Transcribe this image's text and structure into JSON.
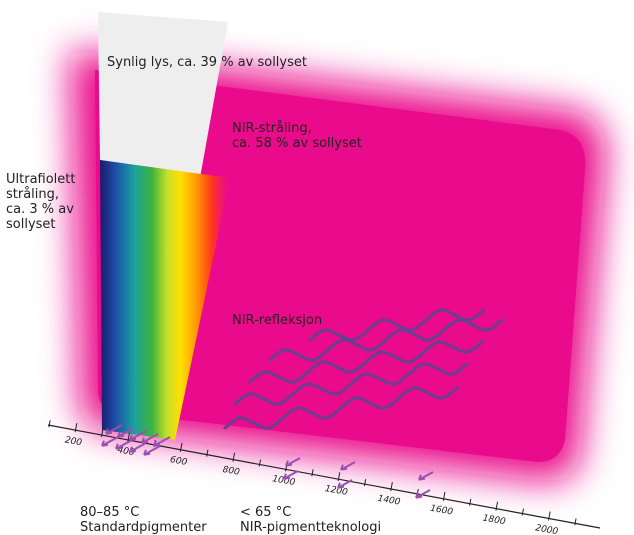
{
  "labels": {
    "visible_light": "Synlig lys, ca. 39 % av sollyset",
    "nir_radiation": "NIR-stråling,\nca. 58 % av sollyset",
    "ultraviolet": "Ultrafiolett\nstråling,\nca. 3 % av\nsollyset",
    "nir_reflection": "NIR-refleksjon",
    "standard_temp": "80–85 °C\nStandardpigmenter",
    "nir_temp": "< 65 °C\nNIR-pigmentteknologi"
  },
  "axis": {
    "ticks": [
      "200",
      "400",
      "600",
      "800",
      "1000",
      "1200",
      "1400",
      "1600",
      "1800",
      "2000"
    ]
  },
  "colors": {
    "nir_magenta": "#ea0a8c",
    "wave_stroke": "#6a3f8f",
    "arrow_color": "#9b4fb0",
    "visible_panel": "#eeeeee"
  }
}
